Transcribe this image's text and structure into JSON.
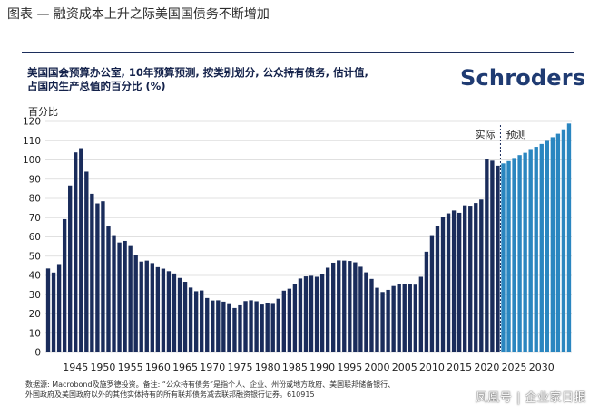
{
  "page_heading": "图表 — 融资成本上升之际美国国债务不断增加",
  "brand": "Schroders",
  "source_note": {
    "line1": "数据源: Macrobond及施罗德投资。备注: “公众持有债务”是指个人、企业、州份或地方政府、美国联邦储备银行、",
    "line2": "外国政府及美国政府以外的其他实体持有的所有联邦债务减去联邦融资银行证券。610915"
  },
  "watermark": "凤凰号 | 企业家日报",
  "chart_data": {
    "type": "bar",
    "title_lines": [
      "美国国会预算办公室, 10年预算预测, 按类别划分, 公众持有债务, 估计值,",
      "占国内生产总值的百分比 (%)"
    ],
    "ylabel": "百分比",
    "xlabel": "",
    "ylim": [
      0,
      120
    ],
    "yticks": [
      0,
      10,
      20,
      30,
      40,
      50,
      60,
      70,
      80,
      90,
      100,
      110,
      120
    ],
    "xtick_labels": [
      "1945",
      "1950",
      "1955",
      "1960",
      "1965",
      "1970",
      "1975",
      "1980",
      "1985",
      "1990",
      "1995",
      "2000",
      "2005",
      "2010",
      "2015",
      "2020",
      "2025",
      "2030"
    ],
    "grid": true,
    "annotations": {
      "actual": "实际",
      "forecast": "预测"
    },
    "colors": {
      "actual": "#1a2c5b",
      "forecast": "#2a86c0",
      "divider": "#1a2c5b"
    },
    "series": [
      {
        "name": "实际",
        "x": [
          1940,
          1941,
          1942,
          1943,
          1944,
          1945,
          1946,
          1947,
          1948,
          1949,
          1950,
          1951,
          1952,
          1953,
          1954,
          1955,
          1956,
          1957,
          1958,
          1959,
          1960,
          1961,
          1962,
          1963,
          1964,
          1965,
          1966,
          1967,
          1968,
          1969,
          1970,
          1971,
          1972,
          1973,
          1974,
          1975,
          1976,
          1977,
          1978,
          1979,
          1980,
          1981,
          1982,
          1983,
          1984,
          1985,
          1986,
          1987,
          1988,
          1989,
          1990,
          1991,
          1992,
          1993,
          1994,
          1995,
          1996,
          1997,
          1998,
          1999,
          2000,
          2001,
          2002,
          2003,
          2004,
          2005,
          2006,
          2007,
          2008,
          2009,
          2010,
          2011,
          2012,
          2013,
          2014,
          2015,
          2016,
          2017,
          2018,
          2019,
          2020,
          2021,
          2022
        ],
        "values": [
          43.6,
          41.5,
          45.9,
          69.2,
          86.7,
          103.9,
          106.1,
          93.9,
          82.4,
          77.4,
          78.5,
          65.4,
          60.9,
          57.1,
          57.9,
          55.7,
          50.6,
          47.2,
          47.7,
          46.4,
          44.3,
          43.5,
          42.2,
          41.0,
          38.7,
          36.7,
          33.7,
          31.8,
          32.2,
          28.3,
          27.0,
          27.1,
          26.4,
          25.1,
          23.1,
          24.5,
          26.7,
          27.1,
          26.6,
          24.9,
          25.5,
          25.2,
          27.9,
          32.1,
          33.1,
          35.3,
          38.4,
          39.5,
          39.8,
          39.3,
          40.8,
          44.0,
          46.6,
          47.8,
          47.7,
          47.5,
          46.8,
          44.5,
          41.6,
          38.2,
          33.6,
          31.4,
          32.5,
          34.5,
          35.5,
          35.6,
          35.3,
          35.2,
          39.3,
          52.3,
          60.9,
          65.8,
          70.3,
          72.2,
          73.7,
          72.5,
          76.4,
          76.2,
          77.6,
          79.4,
          100.3,
          99.6,
          97.0
        ]
      },
      {
        "name": "预测",
        "x": [
          2023,
          2024,
          2025,
          2026,
          2027,
          2028,
          2029,
          2030,
          2031,
          2032,
          2033,
          2034
        ],
        "values": [
          98.2,
          99.4,
          101.0,
          102.5,
          103.7,
          105.2,
          106.8,
          108.3,
          109.9,
          111.8,
          113.6,
          115.9
        ]
      }
    ],
    "final_bar_value": 118.9,
    "final_bar_year": 2035
  }
}
